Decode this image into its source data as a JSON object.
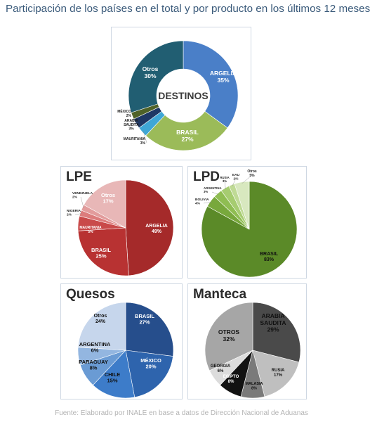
{
  "page": {
    "title": "Participación de los países en el total y por producto en los últimos 12 meses",
    "source": "Fuente: Elaborado por INALE en base a datos de Dirección Nacional de Aduanas"
  },
  "chart_data": [
    {
      "id": "destinos",
      "type": "pie",
      "donut": true,
      "title": "",
      "center_label": "DESTINOS",
      "categories": [
        "ARGELIA",
        "BRASIL",
        "MAURITANIA",
        "ARABIA SAUDITA",
        "MÉXICO",
        "Otros"
      ],
      "values": [
        35,
        27,
        3,
        3,
        2,
        30
      ],
      "labels": [
        "35%",
        "27%",
        "3%",
        "3%",
        "2%",
        "30%"
      ],
      "colors": [
        "#4a7fc8",
        "#9bbb59",
        "#3fa7d6",
        "#1f3864",
        "#4f6228",
        "#215e72"
      ]
    },
    {
      "id": "lpe",
      "type": "pie",
      "title": "LPE",
      "categories": [
        "ARGELIA",
        "BRASIL",
        "MAURITANIA",
        "NIGERIA",
        "VENEZUELA",
        "Otros"
      ],
      "values": [
        49,
        25,
        5,
        2,
        2,
        17
      ],
      "labels": [
        "49%",
        "25%",
        "5%",
        "2%",
        "2%",
        "17%"
      ],
      "colors": [
        "#a52a2a",
        "#b83232",
        "#c94a4a",
        "#dc7c7c",
        "#e29c9c",
        "#e8b7b7"
      ]
    },
    {
      "id": "lpd",
      "type": "pie",
      "title": "LPD",
      "categories": [
        "BRASIL",
        "BOLIVIA",
        "ARGENTINA",
        "RUSIA",
        "EAU",
        "Otros"
      ],
      "values": [
        83,
        4,
        3,
        3,
        2,
        5
      ],
      "labels": [
        "83%",
        "4%",
        "3%",
        "3%",
        "2%",
        "5%"
      ],
      "colors": [
        "#5b8a28",
        "#78a83c",
        "#8fbd52",
        "#a6cc70",
        "#bfda95",
        "#d8e8bf"
      ]
    },
    {
      "id": "quesos",
      "type": "pie",
      "title": "Quesos",
      "categories": [
        "BRASIL",
        "MÉXICO",
        "CHILE",
        "PARAGUAY",
        "ARGENTINA",
        "Otros"
      ],
      "values": [
        27,
        20,
        15,
        8,
        6,
        24
      ],
      "labels": [
        "27%",
        "20%",
        "15%",
        "8%",
        "6%",
        "24%"
      ],
      "colors": [
        "#264e8c",
        "#2e64ad",
        "#3d7cc9",
        "#6a9bd4",
        "#93b6e0",
        "#c6d6ec"
      ]
    },
    {
      "id": "manteca",
      "type": "pie",
      "title": "Manteca",
      "categories": [
        "ARABIA SAUDITA",
        "RUSIA",
        "MALASIA",
        "EGIPTO",
        "GEORGIA",
        "OTROS"
      ],
      "values": [
        29,
        17,
        8,
        8,
        6,
        32
      ],
      "labels": [
        "29%",
        "17%",
        "8%",
        "8%",
        "6%",
        "32%"
      ],
      "colors": [
        "#4a4a4a",
        "#bfbfbf",
        "#7a7a7a",
        "#121212",
        "#dcdcdc",
        "#a6a6a6"
      ]
    }
  ]
}
